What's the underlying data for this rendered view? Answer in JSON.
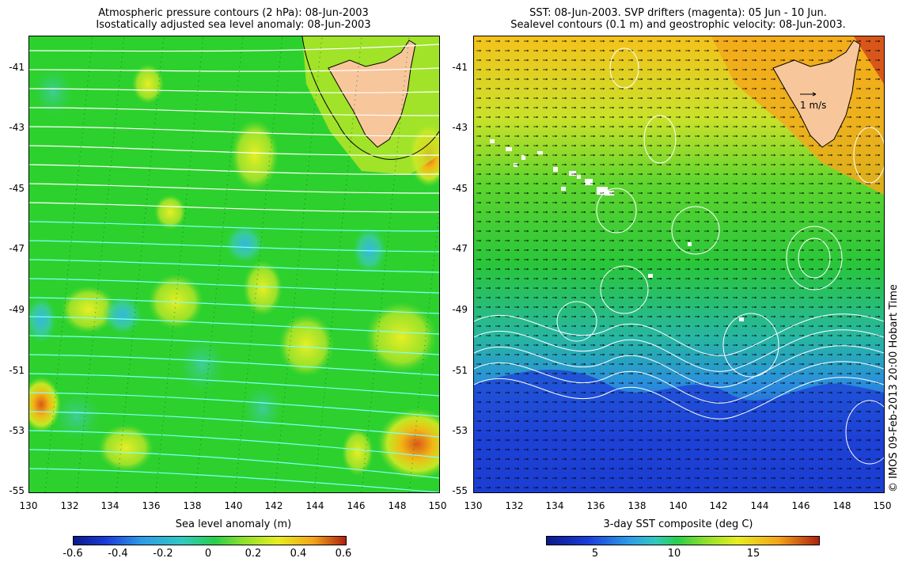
{
  "left_panel": {
    "title_line1": "Atmospheric pressure contours (2 hPa): 08-Jun-2003",
    "title_line2": "Isostatically adjusted sea level anomaly: 08-Jun-2003",
    "colorbar": {
      "title": "Sea level anomaly (m)",
      "ticks": [
        "-0.6",
        "-0.4",
        "-0.2",
        "0",
        "0.2",
        "0.4",
        "0.6"
      ]
    }
  },
  "right_panel": {
    "title_line1": "SST: 08-Jun-2003. SVP drifters (magenta): 05 Jun - 10 Jun.",
    "title_line2": "Sealevel contours (0.1 m) and geostrophic velocity: 08-Jun-2003.",
    "velocity_scale_label": "1 m/s",
    "colorbar": {
      "title": "3-day SST composite (deg C)",
      "ticks": [
        "5",
        "10",
        "15"
      ]
    }
  },
  "axes": {
    "x_ticks": [
      "130",
      "132",
      "134",
      "136",
      "138",
      "140",
      "142",
      "144",
      "146",
      "148",
      "150"
    ],
    "y_ticks": [
      "-41",
      "-43",
      "-45",
      "-47",
      "-49",
      "-51",
      "-53",
      "-55"
    ]
  },
  "credit": "© IMOS 09-Feb-2013 20:00 Hobart Time",
  "colors": {
    "land": "#f7c69a",
    "slope_background": "#27d127",
    "sst_warm": "#f5b318",
    "sst_cold": "#1d3fd6",
    "contour_white": "#ffffff",
    "contour_cyan": "#7fffff"
  }
}
